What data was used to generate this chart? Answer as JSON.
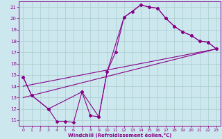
{
  "xlabel": "Windchill (Refroidissement éolien,°C)",
  "bg_color": "#cce8ee",
  "line_color": "#880088",
  "grid_color": "#aacccc",
  "xlim": [
    -0.5,
    23.5
  ],
  "ylim": [
    10.5,
    21.5
  ],
  "xticks": [
    0,
    1,
    2,
    3,
    4,
    5,
    6,
    7,
    8,
    9,
    10,
    11,
    12,
    13,
    14,
    15,
    16,
    17,
    18,
    19,
    20,
    21,
    22,
    23
  ],
  "yticks": [
    11,
    12,
    13,
    14,
    15,
    16,
    17,
    18,
    19,
    20,
    21
  ],
  "series1_x": [
    0,
    1,
    3,
    4,
    5,
    6,
    7,
    8,
    9,
    10,
    11,
    12,
    13,
    14,
    15,
    16,
    17,
    18,
    19,
    20,
    21,
    22,
    23
  ],
  "series1_y": [
    14.8,
    13.2,
    12.0,
    10.9,
    10.9,
    10.8,
    13.5,
    11.4,
    11.3,
    15.3,
    17.0,
    20.1,
    20.6,
    21.2,
    21.0,
    20.9,
    20.0,
    19.3,
    18.8,
    18.5,
    18.0,
    17.9,
    17.3
  ],
  "series2_x": [
    0,
    1,
    3,
    7,
    9,
    10,
    12,
    14,
    15,
    16,
    17,
    18,
    19,
    20,
    21,
    22,
    23
  ],
  "series2_y": [
    14.8,
    13.2,
    12.0,
    13.5,
    11.3,
    15.3,
    20.1,
    21.2,
    21.0,
    20.9,
    20.0,
    19.3,
    18.8,
    18.5,
    18.0,
    17.9,
    17.3
  ],
  "series3_x": [
    0,
    23
  ],
  "series3_y": [
    13.0,
    17.3
  ],
  "series4_x": [
    0,
    23
  ],
  "series4_y": [
    14.0,
    17.3
  ]
}
